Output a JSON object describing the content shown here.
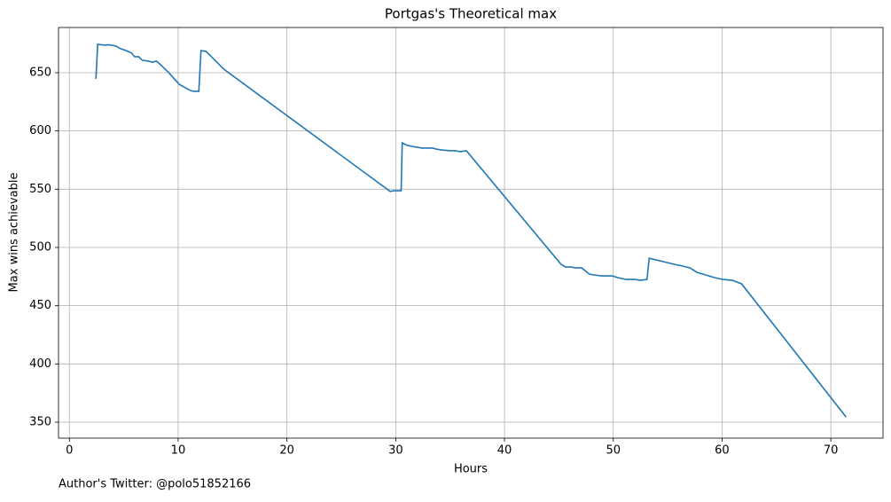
{
  "chart_data": {
    "type": "line",
    "title": "Portgas's Theoretical max",
    "xlabel": "Hours",
    "ylabel": "Max wins achievable",
    "annotation": "Author's Twitter: @polo51852166",
    "x": [
      2.44,
      2.6,
      3.26,
      3.59,
      4.24,
      4.73,
      5.2,
      5.7,
      6.0,
      6.36,
      6.7,
      7.2,
      7.66,
      7.99,
      8.3,
      9.13,
      10.1,
      11.1,
      11.4,
      11.9,
      12.1,
      12.55,
      12.9,
      14.2,
      29.5,
      29.8,
      30.5,
      30.6,
      31.1,
      31.5,
      32.0,
      32.4,
      33.4,
      33.7,
      34.2,
      35.0,
      35.5,
      35.9,
      36.5,
      45.2,
      45.6,
      46.1,
      46.6,
      47.1,
      47.8,
      48.2,
      48.9,
      49.9,
      50.4,
      51.2,
      52.0,
      52.5,
      53.1,
      53.3,
      53.95,
      54.6,
      55.6,
      56.4,
      57.05,
      57.7,
      58.5,
      59.3,
      60.1,
      60.96,
      61.8,
      71.4
    ],
    "series": [
      {
        "name": "Max wins achievable",
        "color": "#1f77b4",
        "values": [
          644.7,
          674.4,
          673.6,
          674,
          673,
          670.5,
          669,
          667,
          663.7,
          663.7,
          660.7,
          660,
          659,
          660,
          657.6,
          650,
          640,
          634.8,
          634,
          634,
          669,
          668.3,
          665.2,
          653,
          548,
          548.7,
          548.7,
          589.8,
          587.5,
          586.8,
          586,
          585.3,
          585.3,
          584.5,
          583.7,
          583,
          583,
          582.2,
          583,
          485.5,
          483.2,
          483.2,
          482.4,
          482.4,
          477.1,
          476.4,
          475.6,
          475.6,
          474.1,
          472.5,
          472.5,
          471.8,
          472.5,
          490.8,
          489.3,
          487.8,
          485.5,
          484,
          482.4,
          478.6,
          476.4,
          474.1,
          472.5,
          471.8,
          468.7,
          354.5
        ]
      }
    ],
    "xlim": [
      -1,
      74.8
    ],
    "xticks": [
      0,
      10,
      20,
      30,
      40,
      50,
      60,
      70
    ],
    "ylim": [
      336.3,
      688.8
    ],
    "yticks": [
      350,
      400,
      450,
      500,
      550,
      600,
      650
    ],
    "grid": true
  }
}
